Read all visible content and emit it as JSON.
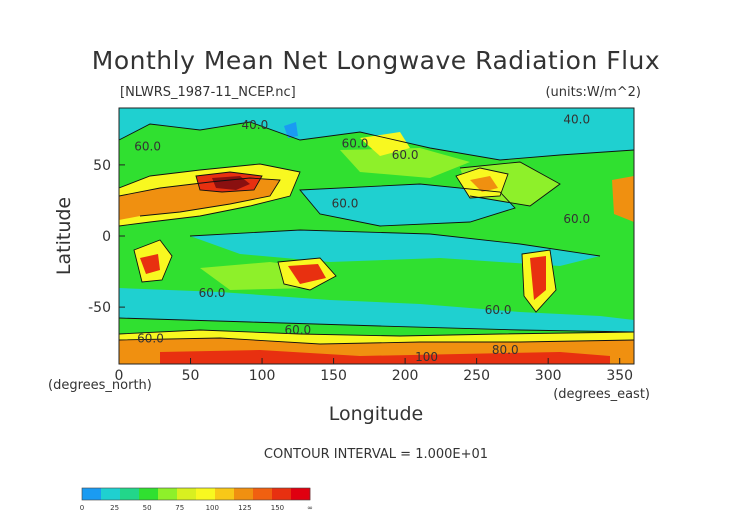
{
  "chart_data": {
    "type": "heatmap",
    "title": "Monthly Mean Net Longwave Radiation Flux",
    "subtitle_left": "[NLWRS_1987-11_NCEP.nc]",
    "subtitle_right": "(units:W/m^2)",
    "xlabel": "Longitude",
    "ylabel": "Latitude",
    "x_unit_note": "(degrees_east)",
    "y_unit_note": "(degrees_north)",
    "xlim": [
      0,
      360
    ],
    "ylim": [
      -90,
      90
    ],
    "x_ticks": [
      0,
      50,
      100,
      150,
      200,
      250,
      300,
      350
    ],
    "y_ticks": [
      -50,
      0,
      50
    ],
    "contour_interval_text": "CONTOUR INTERVAL = 1.000E+01",
    "contour_labels": [
      {
        "text": "40.0",
        "lon": 95,
        "lat": 78
      },
      {
        "text": "60.0",
        "lon": 200,
        "lat": 57
      },
      {
        "text": "40.0",
        "lon": 320,
        "lat": 82
      },
      {
        "text": "60.0",
        "lon": 20,
        "lat": 63
      },
      {
        "text": "60.0",
        "lon": 165,
        "lat": 65
      },
      {
        "text": "60.0",
        "lon": 158,
        "lat": 23
      },
      {
        "text": "60.0",
        "lon": 320,
        "lat": 12
      },
      {
        "text": "60.0",
        "lon": 65,
        "lat": -40
      },
      {
        "text": "60.0",
        "lon": 265,
        "lat": -52
      },
      {
        "text": "60.0",
        "lon": 125,
        "lat": -66
      },
      {
        "text": "60.0",
        "lon": 22,
        "lat": -72
      },
      {
        "text": "100",
        "lon": 215,
        "lat": -85
      },
      {
        "text": "80.0",
        "lon": 270,
        "lat": -80
      }
    ],
    "colorbar": {
      "levels": [
        0,
        25,
        50,
        75,
        100,
        125,
        150
      ],
      "tick_labels": [
        "0",
        "25",
        "50",
        "75",
        "100",
        "125",
        "150",
        "∞"
      ],
      "colors": [
        "#1a9bf2",
        "#1fd0d0",
        "#22d68a",
        "#30e030",
        "#8ef02a",
        "#d8f020",
        "#f8f820",
        "#f8c818",
        "#f09010",
        "#f06010",
        "#e83010",
        "#e00010"
      ]
    },
    "colors": {
      "low": "#1a9bf2",
      "cyan": "#1fd0d0",
      "green": "#30e030",
      "yellow": "#f8f820",
      "orange": "#f09010",
      "red": "#e83010",
      "max": "#8a1010",
      "contour": "#111111"
    }
  }
}
